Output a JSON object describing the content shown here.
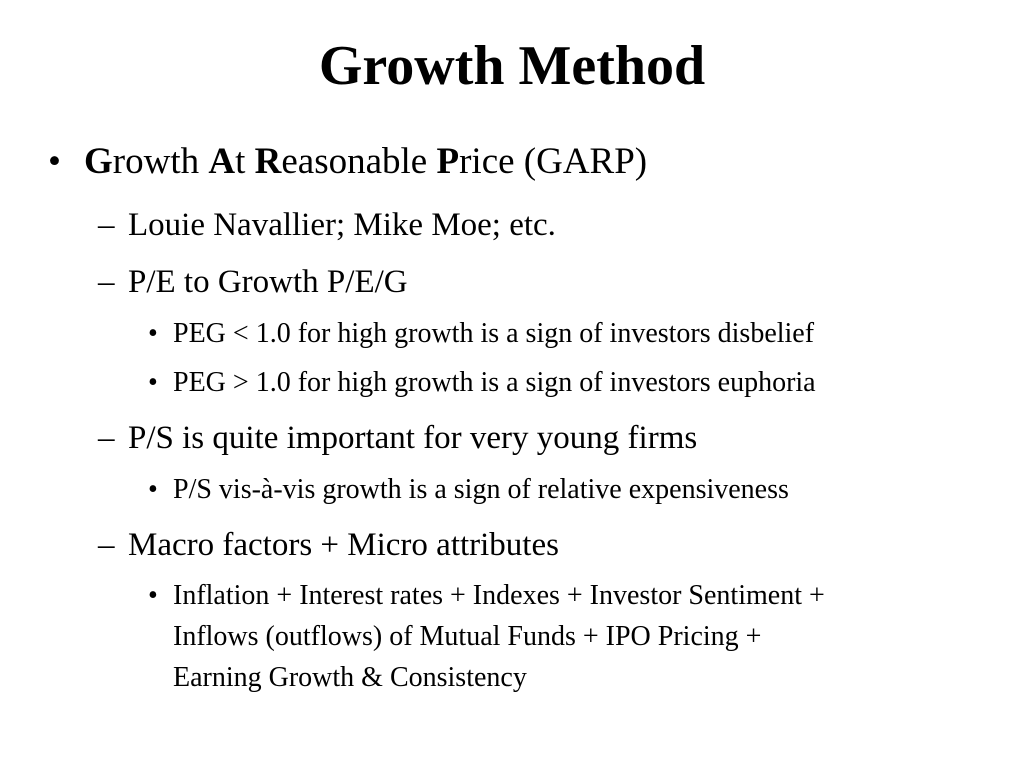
{
  "slide": {
    "title": "Growth Method",
    "bullet1": {
      "marker": "•",
      "parts": [
        "G",
        "rowth ",
        "A",
        "t ",
        "R",
        "easonable ",
        "P",
        "rice (GARP)"
      ]
    },
    "sub1": {
      "marker": "–",
      "text": "Louie Navallier; Mike Moe; etc."
    },
    "sub2": {
      "marker": "–",
      "text": "P/E to Growth P/E/G"
    },
    "sub2_items": [
      {
        "marker": "•",
        "text": "PEG < 1.0 for high growth is a sign of investors disbelief"
      },
      {
        "marker": "•",
        "text": "PEG > 1.0 for high growth is a sign of investors euphoria"
      }
    ],
    "sub3": {
      "marker": "–",
      "text": "P/S is quite important for very young firms"
    },
    "sub3_items": [
      {
        "marker": "•",
        "text": "P/S vis-à-vis growth is a sign of relative expensiveness"
      }
    ],
    "sub4": {
      "marker": "–",
      "text": "Macro factors + Micro attributes"
    },
    "sub4_items": [
      {
        "marker": "•",
        "lines": [
          "Inflation + Interest rates + Indexes + Investor Sentiment +",
          "Inflows (outflows) of Mutual Funds + IPO Pricing +",
          "Earning Growth & Consistency"
        ]
      }
    ]
  }
}
